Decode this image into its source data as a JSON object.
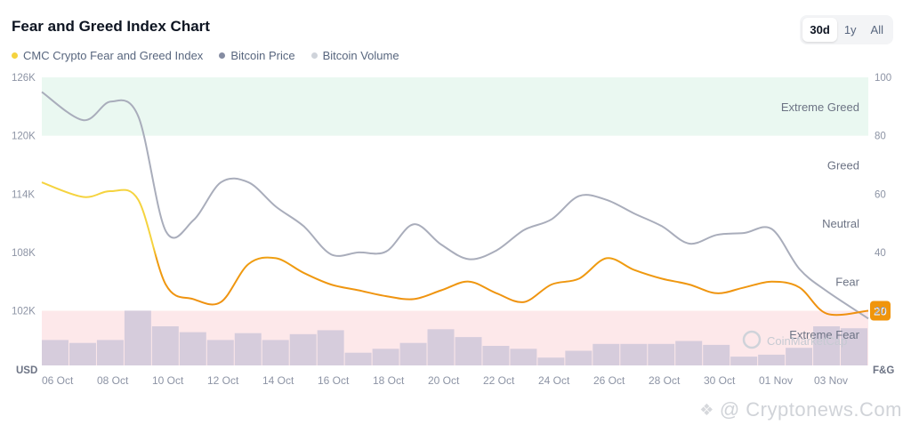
{
  "header": {
    "title": "Fear and Greed Index Chart",
    "range_buttons": [
      "30d",
      "1y",
      "All"
    ],
    "active_range": "30d"
  },
  "legend": [
    {
      "label": "CMC Crypto Fear and Greed Index",
      "color": "#f5d33f"
    },
    {
      "label": "Bitcoin Price",
      "color": "#858ca2"
    },
    {
      "label": "Bitcoin Volume",
      "color": "#cfd3da"
    }
  ],
  "watermark": {
    "text": "@ Cryptonews.Com",
    "faint_logo": "CoinMarketCap"
  },
  "chart_data": {
    "type": "line",
    "title": "Fear and Greed Index Chart",
    "x_tick_labels": [
      "06 Oct",
      "08 Oct",
      "10 Oct",
      "12 Oct",
      "14 Oct",
      "16 Oct",
      "18 Oct",
      "20 Oct",
      "22 Oct",
      "24 Oct",
      "26 Oct",
      "28 Oct",
      "30 Oct",
      "01 Nov",
      "03 Nov"
    ],
    "left_axis": {
      "label": "USD",
      "ticks": [
        "126K",
        "120K",
        "114K",
        "108K",
        "102K"
      ],
      "range": [
        102000,
        126000
      ]
    },
    "right_axis": {
      "label": "F&G",
      "ticks": [
        "100",
        "80",
        "60",
        "40",
        "20"
      ],
      "range": [
        20,
        100
      ]
    },
    "zones": [
      {
        "label": "Extreme Greed",
        "from": 80,
        "to": 100,
        "color": "#eaf8f1"
      },
      {
        "label": "Greed",
        "from": 60,
        "to": 80,
        "color": ""
      },
      {
        "label": "Neutral",
        "from": 40,
        "to": 60,
        "color": ""
      },
      {
        "label": "Fear",
        "from": 20,
        "to": 40,
        "color": ""
      },
      {
        "label": "Extreme Fear",
        "from": 0,
        "to": 20,
        "color": "#fde8ea"
      }
    ],
    "days": [
      "06 Oct",
      "07 Oct",
      "08 Oct",
      "09 Oct",
      "10 Oct",
      "11 Oct",
      "12 Oct",
      "13 Oct",
      "14 Oct",
      "15 Oct",
      "16 Oct",
      "17 Oct",
      "18 Oct",
      "19 Oct",
      "20 Oct",
      "21 Oct",
      "22 Oct",
      "23 Oct",
      "24 Oct",
      "25 Oct",
      "26 Oct",
      "27 Oct",
      "28 Oct",
      "29 Oct",
      "30 Oct",
      "31 Oct",
      "01 Nov",
      "02 Nov",
      "03 Nov",
      "04 Nov"
    ],
    "series": [
      {
        "name": "CMC Crypto Fear and Greed Index",
        "axis": "right",
        "values": [
          64,
          59,
          61,
          58,
          29,
          24,
          23,
          36,
          38,
          33,
          29,
          27,
          25,
          24,
          27,
          30,
          26,
          23,
          29,
          31,
          38,
          34,
          31,
          29,
          26,
          28,
          30,
          28,
          19,
          20
        ],
        "latest_label": "20",
        "latest_color": "#f0950c"
      },
      {
        "name": "Bitcoin Price",
        "axis": "left",
        "values": [
          124500,
          121600,
          123500,
          122000,
          110200,
          111300,
          115200,
          115200,
          112700,
          110700,
          107800,
          108000,
          108100,
          110900,
          108800,
          107300,
          108200,
          110300,
          111400,
          113800,
          113400,
          112000,
          110700,
          108900,
          109800,
          110000,
          110400,
          106300,
          104000,
          101200
        ]
      },
      {
        "name": "Bitcoin Volume",
        "axis": "none",
        "values": [
          26,
          23,
          26,
          56,
          40,
          34,
          26,
          33,
          26,
          32,
          36,
          13,
          17,
          23,
          37,
          29,
          20,
          17,
          8,
          15,
          22,
          22,
          22,
          25,
          21,
          9,
          11,
          18,
          40,
          38
        ]
      }
    ],
    "grid": false,
    "legend_position": "top-left"
  }
}
